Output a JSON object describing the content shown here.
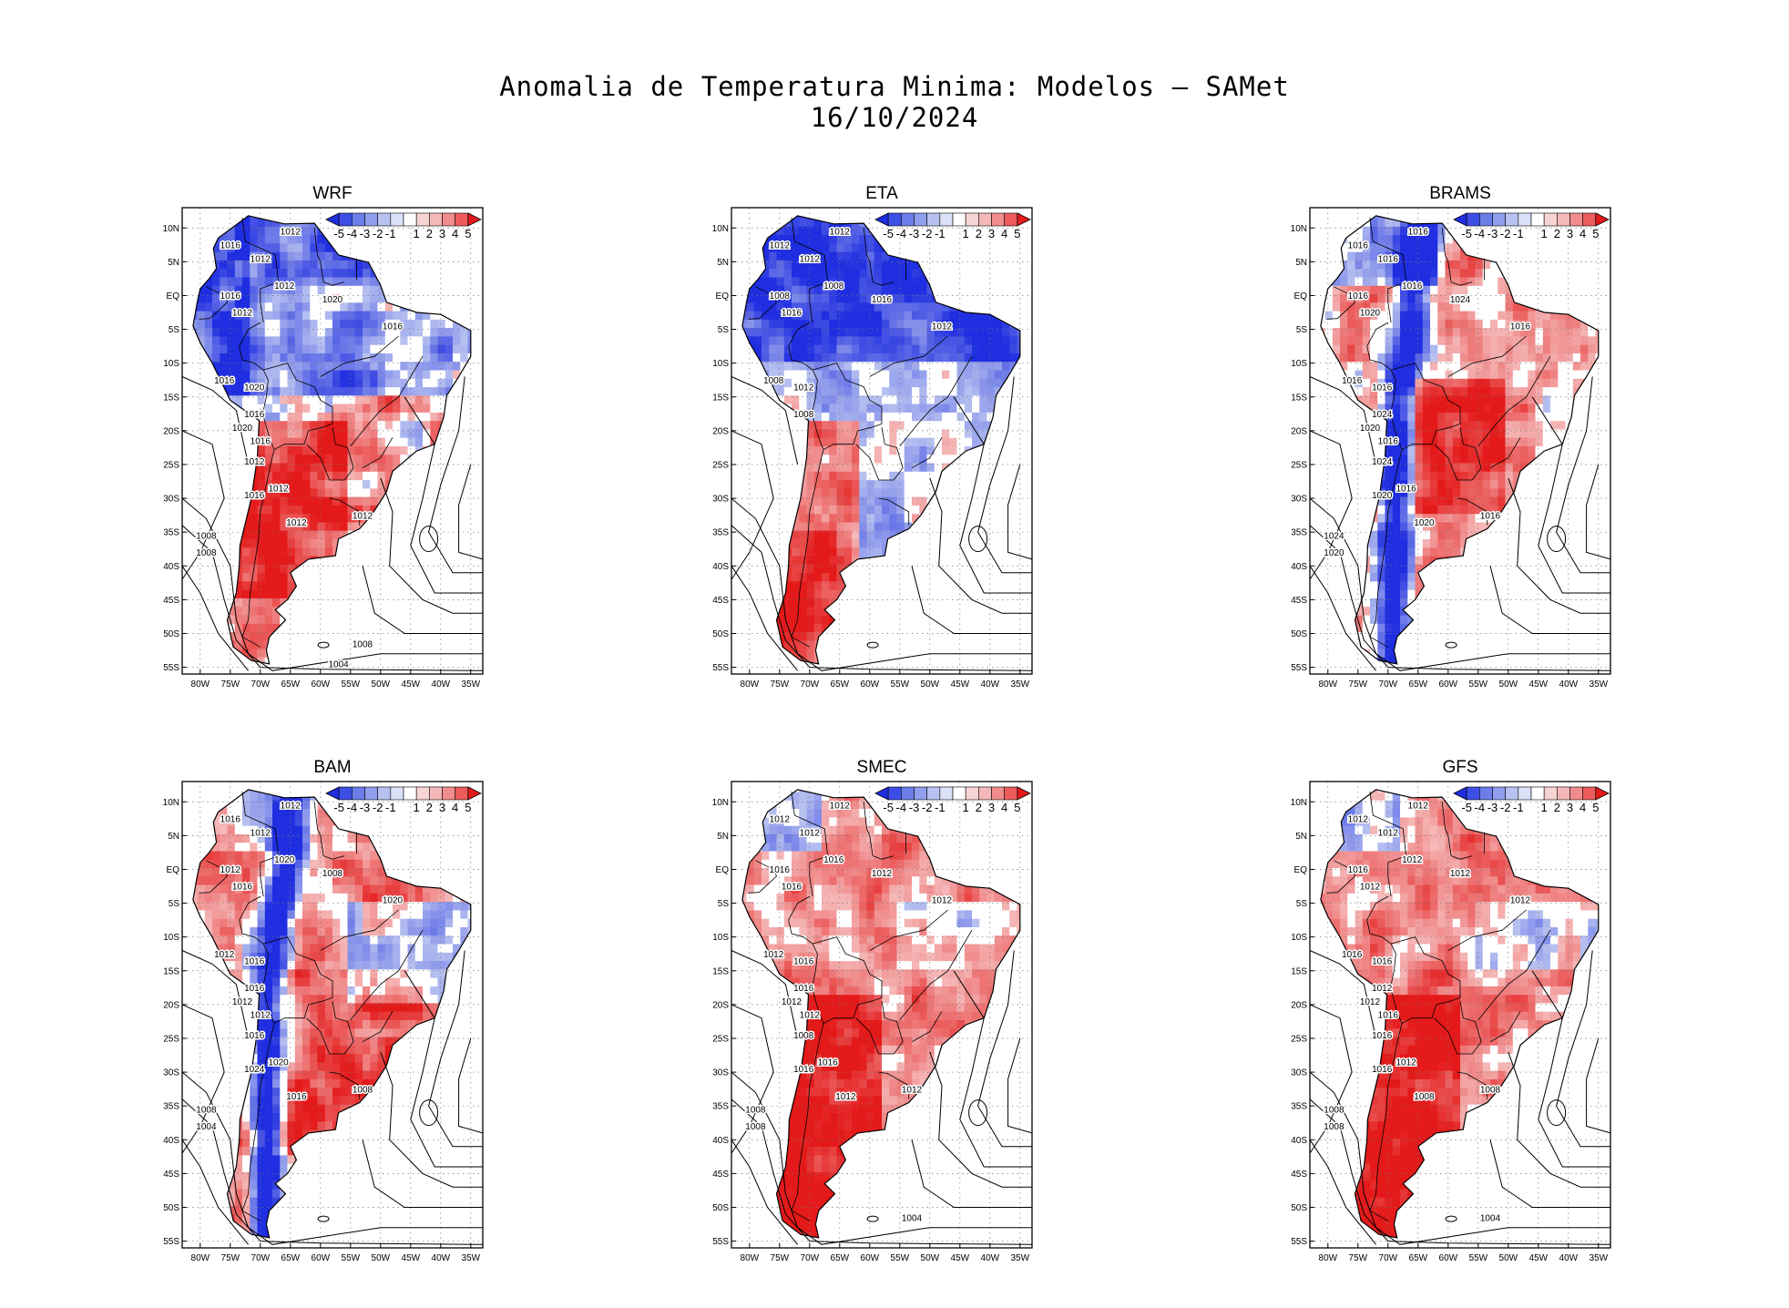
{
  "title": {
    "line1": "Anomalia de Temperatura Minima: Modelos — SAMet",
    "line2": "16/10/2024"
  },
  "colors": {
    "blue_strong": "#1f2ee0",
    "blue_light": "#b8c2f0",
    "white": "#ffffff",
    "red_light": "#f5b8b8",
    "red_strong": "#e41a1a"
  },
  "axes": {
    "lat_labels": [
      "10N",
      "5N",
      "EQ",
      "5S",
      "10S",
      "15S",
      "20S",
      "25S",
      "30S",
      "35S",
      "40S",
      "45S",
      "50S",
      "55S"
    ],
    "lon_labels": [
      "80W",
      "75W",
      "70W",
      "65W",
      "60W",
      "55W",
      "50W",
      "45W",
      "40W",
      "35W"
    ]
  },
  "colorbar": {
    "levels": [
      -5,
      -4,
      -3,
      -2,
      -1,
      1,
      2,
      3,
      4,
      5
    ],
    "labels": [
      "-5",
      "-4",
      "-3",
      "-2",
      "-1",
      "1",
      "2",
      "3",
      "4",
      "5"
    ]
  },
  "panels": [
    {
      "name": "WRF",
      "pattern": "mixed-north-blue-south-red",
      "contours": [
        "1012",
        "1012",
        "1016",
        "1016",
        "1012",
        "1012",
        "1020",
        "1016",
        "1016",
        "1020",
        "1016",
        "1020",
        "1016",
        "1012",
        "1016",
        "1012",
        "1012",
        "1012",
        "1008",
        "1008",
        "1008",
        "1004"
      ]
    },
    {
      "name": "ETA",
      "pattern": "north-blue-andes-red",
      "contours": [
        "1012",
        "1012",
        "1012",
        "1008",
        "1016",
        "1008",
        "1016",
        "1012",
        "1008",
        "1012",
        "1008"
      ]
    },
    {
      "name": "BRAMS",
      "pattern": "warm-interior-blue-andes",
      "contours": [
        "1016",
        "1016",
        "1016",
        "1016",
        "1020",
        "1016",
        "1024",
        "1016",
        "1016",
        "1016",
        "1024",
        "1020",
        "1016",
        "1024",
        "1020",
        "1016",
        "1020",
        "1016",
        "1024",
        "1020"
      ]
    },
    {
      "name": "BAM",
      "pattern": "warm-interior-blue-coast",
      "contours": [
        "1012",
        "1012",
        "1016",
        "1012",
        "1016",
        "1020",
        "1008",
        "1020",
        "1012",
        "1016",
        "1016",
        "1012",
        "1012",
        "1016",
        "1024",
        "1020",
        "1016",
        "1008",
        "1008",
        "1004"
      ]
    },
    {
      "name": "SMEC",
      "pattern": "widespread-warm",
      "contours": [
        "1012",
        "1012",
        "1012",
        "1016",
        "1016",
        "1016",
        "1012",
        "1012",
        "1012",
        "1016",
        "1016",
        "1012",
        "1012",
        "1008",
        "1016",
        "1016",
        "1012",
        "1012",
        "1008",
        "1008",
        "1004"
      ]
    },
    {
      "name": "GFS",
      "pattern": "widespread-warm",
      "contours": [
        "1012",
        "1012",
        "1012",
        "1016",
        "1012",
        "1012",
        "1012",
        "1012",
        "1016",
        "1016",
        "1012",
        "1012",
        "1016",
        "1016",
        "1016",
        "1012",
        "1008",
        "1008",
        "1008",
        "1008",
        "1004"
      ]
    }
  ]
}
